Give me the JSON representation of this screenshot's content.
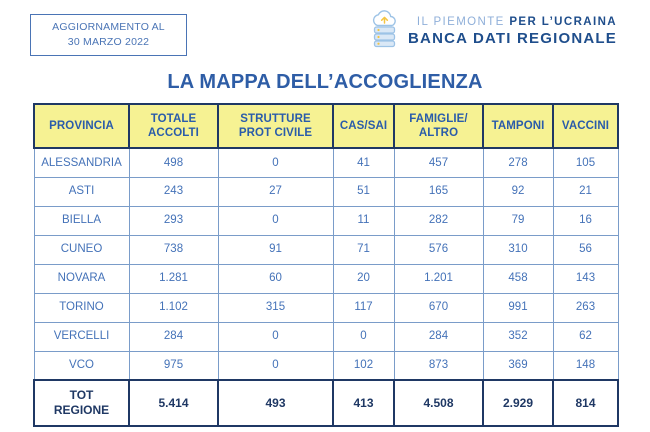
{
  "update_box": {
    "line1": "AGGIORNAMENTO AL",
    "line2": "30 MARZO 2022"
  },
  "logo": {
    "brand_light": "IL PIEMONTE",
    "brand_bold": "PER L’UCRAINA",
    "subtitle": "BANCA DATI REGIONALE",
    "icon": "cloud-database-icon"
  },
  "title": "LA MAPPA DELL’ACCOGLIENZA",
  "colors": {
    "title_blue": "#2e5da6",
    "cell_text_blue": "#4472b8",
    "dark_navy_border": "#1f3864",
    "grid_blue": "#7a9cc9",
    "header_yellow": "#f6f293",
    "logo_light_blue": "#8fafd9",
    "logo_dark_blue": "#1f4e8c",
    "update_box_blue": "#4a74b5"
  },
  "chart_data": {
    "type": "table",
    "title": "LA MAPPA DELL’ACCOGLIENZA",
    "columns": [
      "PROVINCIA",
      "TOTALE\nACCOLTI",
      "STRUTTURE\nPROT CIVILE",
      "CAS/SAI",
      "FAMIGLIE/\nALTRO",
      "TAMPONI",
      "VACCINI"
    ],
    "rows": [
      {
        "label": "ALESSANDRIA",
        "values": [
          "498",
          "0",
          "41",
          "457",
          "278",
          "105"
        ],
        "is_total": false
      },
      {
        "label": "ASTI",
        "values": [
          "243",
          "27",
          "51",
          "165",
          "92",
          "21"
        ],
        "is_total": false
      },
      {
        "label": "BIELLA",
        "values": [
          "293",
          "0",
          "11",
          "282",
          "79",
          "16"
        ],
        "is_total": false
      },
      {
        "label": "CUNEO",
        "values": [
          "738",
          "91",
          "71",
          "576",
          "310",
          "56"
        ],
        "is_total": false
      },
      {
        "label": "NOVARA",
        "values": [
          "1.281",
          "60",
          "20",
          "1.201",
          "458",
          "143"
        ],
        "is_total": false
      },
      {
        "label": "TORINO",
        "values": [
          "1.102",
          "315",
          "117",
          "670",
          "991",
          "263"
        ],
        "is_total": false
      },
      {
        "label": "VERCELLI",
        "values": [
          "284",
          "0",
          "0",
          "284",
          "352",
          "62"
        ],
        "is_total": false
      },
      {
        "label": "VCO",
        "values": [
          "975",
          "0",
          "102",
          "873",
          "369",
          "148"
        ],
        "is_total": false
      },
      {
        "label": "TOT\nREGIONE",
        "values": [
          "5.414",
          "493",
          "413",
          "4.508",
          "2.929",
          "814"
        ],
        "is_total": true
      }
    ]
  }
}
